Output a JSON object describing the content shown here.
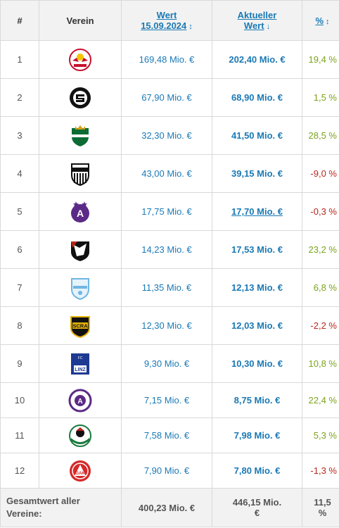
{
  "header": {
    "num": "#",
    "club": "Verein",
    "wert_line1": "Wert",
    "wert_line2": "15.09.2024",
    "wert_arrow": "↕",
    "akt_line1": "Aktueller",
    "akt_line2": "Wert",
    "akt_arrow": "↓",
    "pct": "%",
    "pct_arrow": "↕"
  },
  "rows": [
    {
      "num": "1",
      "wert": "169,48 Mio. €",
      "akt": "202,40 Mio. €",
      "pct": "19,4 %",
      "trend": "pos",
      "logo": "redbull-salzburg-logo"
    },
    {
      "num": "2",
      "wert": "67,90 Mio. €",
      "akt": "68,90 Mio. €",
      "pct": "1,5 %",
      "trend": "pos",
      "logo": "sturm-graz-logo"
    },
    {
      "num": "3",
      "wert": "32,30 Mio. €",
      "akt": "41,50 Mio. €",
      "pct": "28,5 %",
      "trend": "pos",
      "logo": "rapid-wien-logo"
    },
    {
      "num": "4",
      "wert": "43,00 Mio. €",
      "akt": "39,15 Mio. €",
      "pct": "-9,0 %",
      "trend": "neg",
      "logo": "lask-logo"
    },
    {
      "num": "5",
      "wert": "17,75 Mio. €",
      "akt": "17,70 Mio. €",
      "pct": "-0,3 %",
      "trend": "neg",
      "logo": "austria-wien-logo"
    },
    {
      "num": "6",
      "wert": "14,23 Mio. €",
      "akt": "17,53 Mio. €",
      "pct": "23,2 %",
      "trend": "pos",
      "logo": "wolfsberger-ac-logo"
    },
    {
      "num": "7",
      "wert": "11,35 Mio. €",
      "akt": "12,13 Mio. €",
      "pct": "6,8 %",
      "trend": "pos",
      "logo": "tsv-hartberg-logo"
    },
    {
      "num": "8",
      "wert": "12,30 Mio. €",
      "akt": "12,03 Mio. €",
      "pct": "-2,2 %",
      "trend": "neg",
      "logo": "scr-altach-logo"
    },
    {
      "num": "9",
      "wert": "9,30 Mio. €",
      "akt": "10,30 Mio. €",
      "pct": "10,8 %",
      "trend": "pos",
      "logo": "blau-weiss-linz-logo"
    },
    {
      "num": "10",
      "wert": "7,15 Mio. €",
      "akt": "8,75 Mio. €",
      "pct": "22,4 %",
      "trend": "pos",
      "logo": "austria-klagenfurt-logo"
    },
    {
      "num": "11",
      "wert": "7,58 Mio. €",
      "akt": "7,98 Mio. €",
      "pct": "5,3 %",
      "trend": "pos",
      "logo": "wsg-tirol-logo"
    },
    {
      "num": "12",
      "wert": "7,90 Mio. €",
      "akt": "7,80 Mio. €",
      "pct": "-1,3 %",
      "trend": "neg",
      "logo": "grazer-ak-logo"
    }
  ],
  "footer": {
    "label_line1": "Gesamtwert aller",
    "label_line2": "Vereine:",
    "wert": "400,23 Mio. €",
    "akt_line1": "446,15 Mio.",
    "akt_line2": "€",
    "pct_line1": "11,5",
    "pct_line2": "%"
  },
  "colors": {
    "link": "#1a79b5",
    "positive": "#7ba31b",
    "negative": "#b8261c",
    "header_bg": "#f2f2f2"
  }
}
